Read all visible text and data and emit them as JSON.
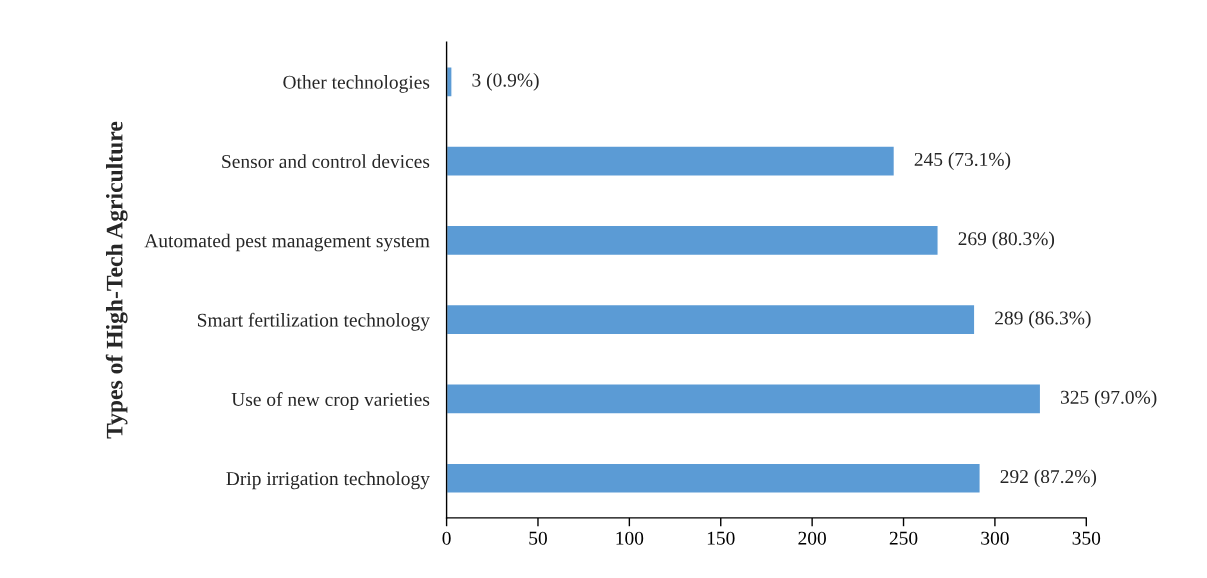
{
  "chart_data": {
    "type": "bar",
    "orientation": "horizontal",
    "ylabel": "Types of High-Tech Agriculture",
    "categories": [
      "Other technologies",
      "Sensor and control devices",
      "Automated pest management system",
      "Smart fertilization technology",
      "Use of new crop varieties",
      "Drip irrigation technology"
    ],
    "values": [
      3,
      245,
      269,
      289,
      325,
      292
    ],
    "value_labels": [
      "3 (0.9%)",
      "245 (73.1%)",
      "269 (80.3%)",
      "289 (86.3%)",
      "325 (97.0%)",
      "292 (87.2%)"
    ],
    "color": "#5b9bd5",
    "xlim": [
      0,
      350
    ],
    "xticks": [
      0,
      50,
      100,
      150,
      200,
      250,
      300,
      350
    ],
    "grid": false
  }
}
